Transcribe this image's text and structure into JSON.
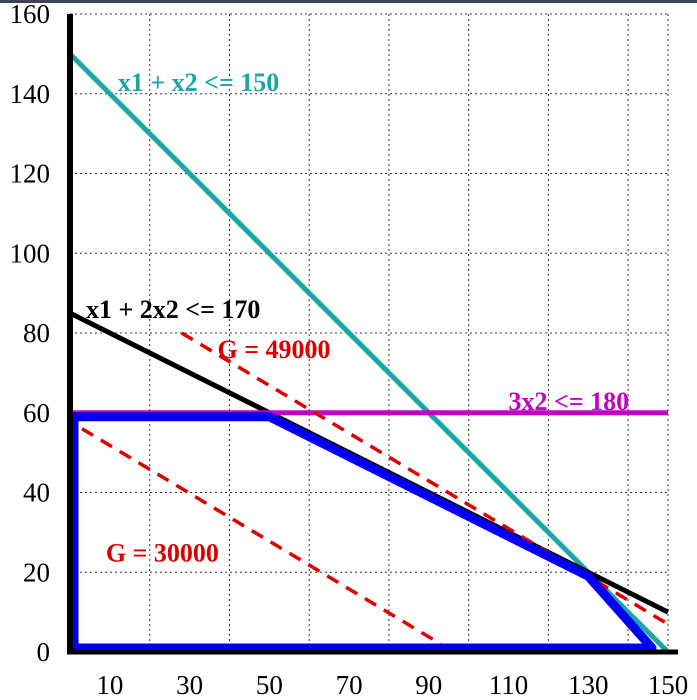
{
  "chart_data": {
    "type": "line",
    "title": "",
    "xlabel": "",
    "ylabel": "",
    "xlim": [
      0,
      150
    ],
    "ylim": [
      0,
      160
    ],
    "xticks": [
      10,
      30,
      50,
      70,
      90,
      110,
      130,
      150
    ],
    "yticks": [
      0,
      20,
      40,
      60,
      80,
      100,
      120,
      140,
      160
    ],
    "grid_x": [
      0,
      20,
      40,
      60,
      80,
      100,
      120,
      140
    ],
    "grid_y": [
      20,
      40,
      60,
      80,
      100,
      120,
      140,
      160
    ],
    "grid": true,
    "series": [
      {
        "name": "x1 + x2 <= 150",
        "color": "#1aa6a6",
        "style": "solid",
        "points": [
          [
            0,
            150
          ],
          [
            150,
            0
          ]
        ]
      },
      {
        "name": "x1 + 2x2 <= 170",
        "color": "#000000",
        "style": "solid",
        "points": [
          [
            0,
            85
          ],
          [
            150,
            10
          ]
        ]
      },
      {
        "name": "3x2 <= 180",
        "color": "#c400c4",
        "style": "solid",
        "points": [
          [
            0,
            60
          ],
          [
            150,
            60
          ]
        ]
      },
      {
        "name": "G = 49000",
        "color": "#dd0000",
        "style": "dashed",
        "points": [
          [
            28,
            80
          ],
          [
            150,
            7
          ]
        ]
      },
      {
        "name": "G = 30000",
        "color": "#dd0000",
        "style": "dashed",
        "points": [
          [
            3,
            56
          ],
          [
            93,
            2
          ]
        ]
      },
      {
        "name": "",
        "color": "#0000ee",
        "style": "solid",
        "closed": true,
        "points": [
          [
            1,
            1
          ],
          [
            1,
            59
          ],
          [
            50,
            59
          ],
          [
            130,
            19
          ],
          [
            146,
            1
          ]
        ]
      }
    ],
    "annotations": [
      {
        "text": "x1 + x2 <= 150",
        "color": "#1aa6a6",
        "at": [
          12,
          143
        ]
      },
      {
        "text": "x1 + 2x2 <= 170",
        "color": "#000000",
        "at": [
          4,
          86
        ]
      },
      {
        "text": "G = 49000",
        "color": "#dd0000",
        "at": [
          37,
          76
        ]
      },
      {
        "text": "3x2 <= 180",
        "color": "#c400c4",
        "at": [
          110,
          63
        ]
      },
      {
        "text": "G = 30000",
        "color": "#dd0000",
        "at": [
          9,
          25
        ]
      }
    ]
  }
}
